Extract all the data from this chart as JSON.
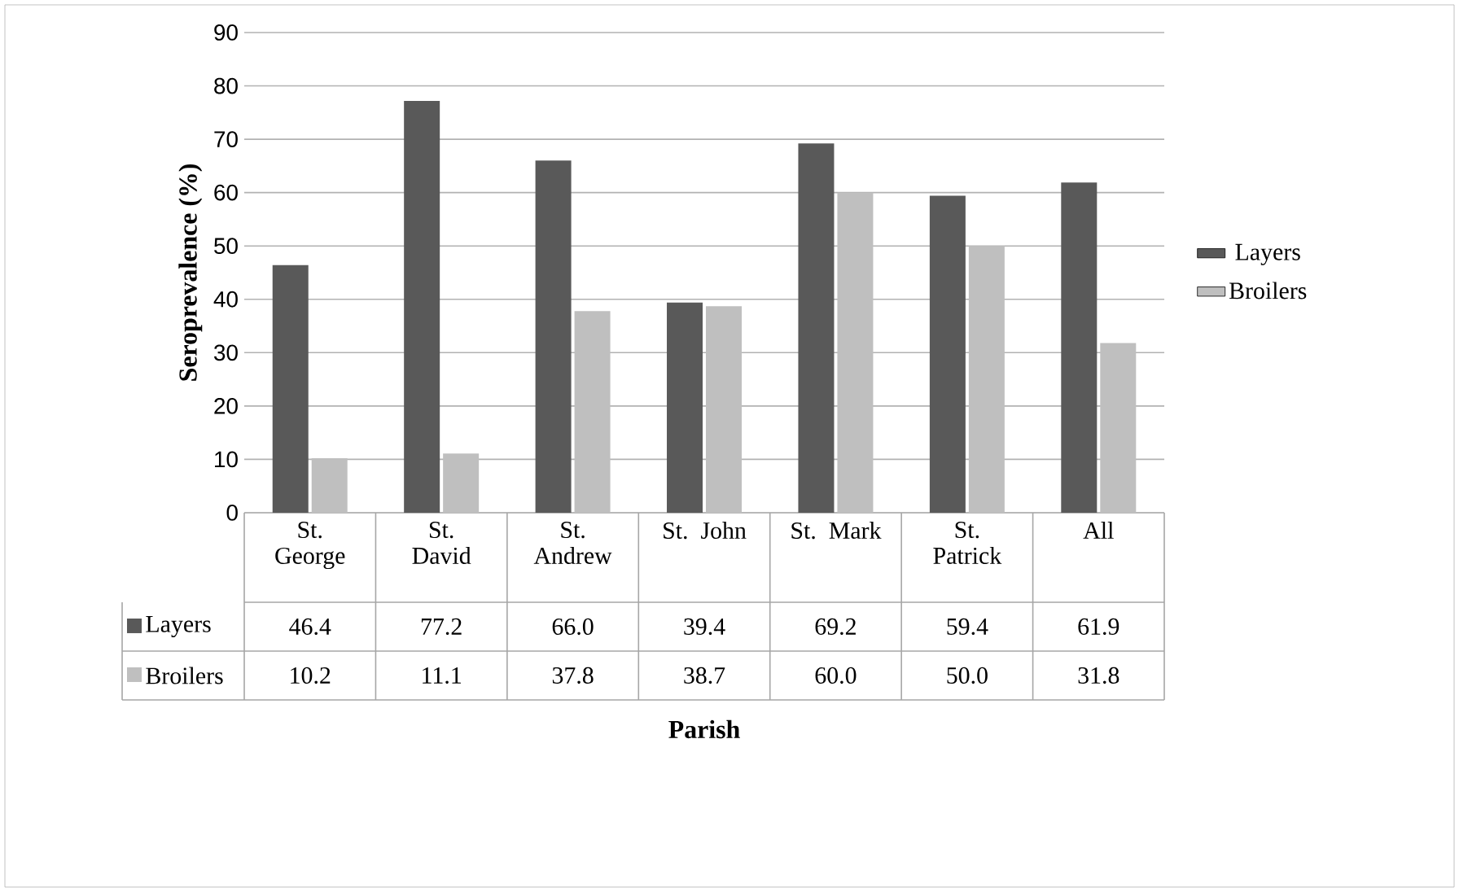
{
  "chart_data": {
    "type": "bar",
    "annotations": [
      "Parish"
    ],
    "ylabel": "Seroprevalence (%)",
    "categories": [
      "St. George",
      "St. David",
      "St. Andrew",
      "St. John",
      "St. Mark",
      "St. Patrick",
      "All"
    ],
    "series": [
      {
        "name": "Layers",
        "color": "#595959",
        "values": [
          46.4,
          77.2,
          66.0,
          39.4,
          69.2,
          59.4,
          61.9
        ],
        "value_labels": [
          "46.4",
          "77.2",
          "66.0",
          "39.4",
          "69.2",
          "59.4",
          "61.9"
        ]
      },
      {
        "name": "Broilers",
        "color": "#bfbfbf",
        "values": [
          10.2,
          11.1,
          37.8,
          38.7,
          60.0,
          50.0,
          31.8
        ],
        "value_labels": [
          "10.2",
          "11.1",
          "37.8",
          "38.7",
          "60.0",
          "50.0",
          "31.8"
        ]
      }
    ],
    "ylim": [
      0,
      90
    ],
    "yticks": [
      0,
      10,
      20,
      30,
      40,
      50,
      60,
      70,
      80,
      90
    ],
    "grid": "y",
    "legend": "right"
  }
}
